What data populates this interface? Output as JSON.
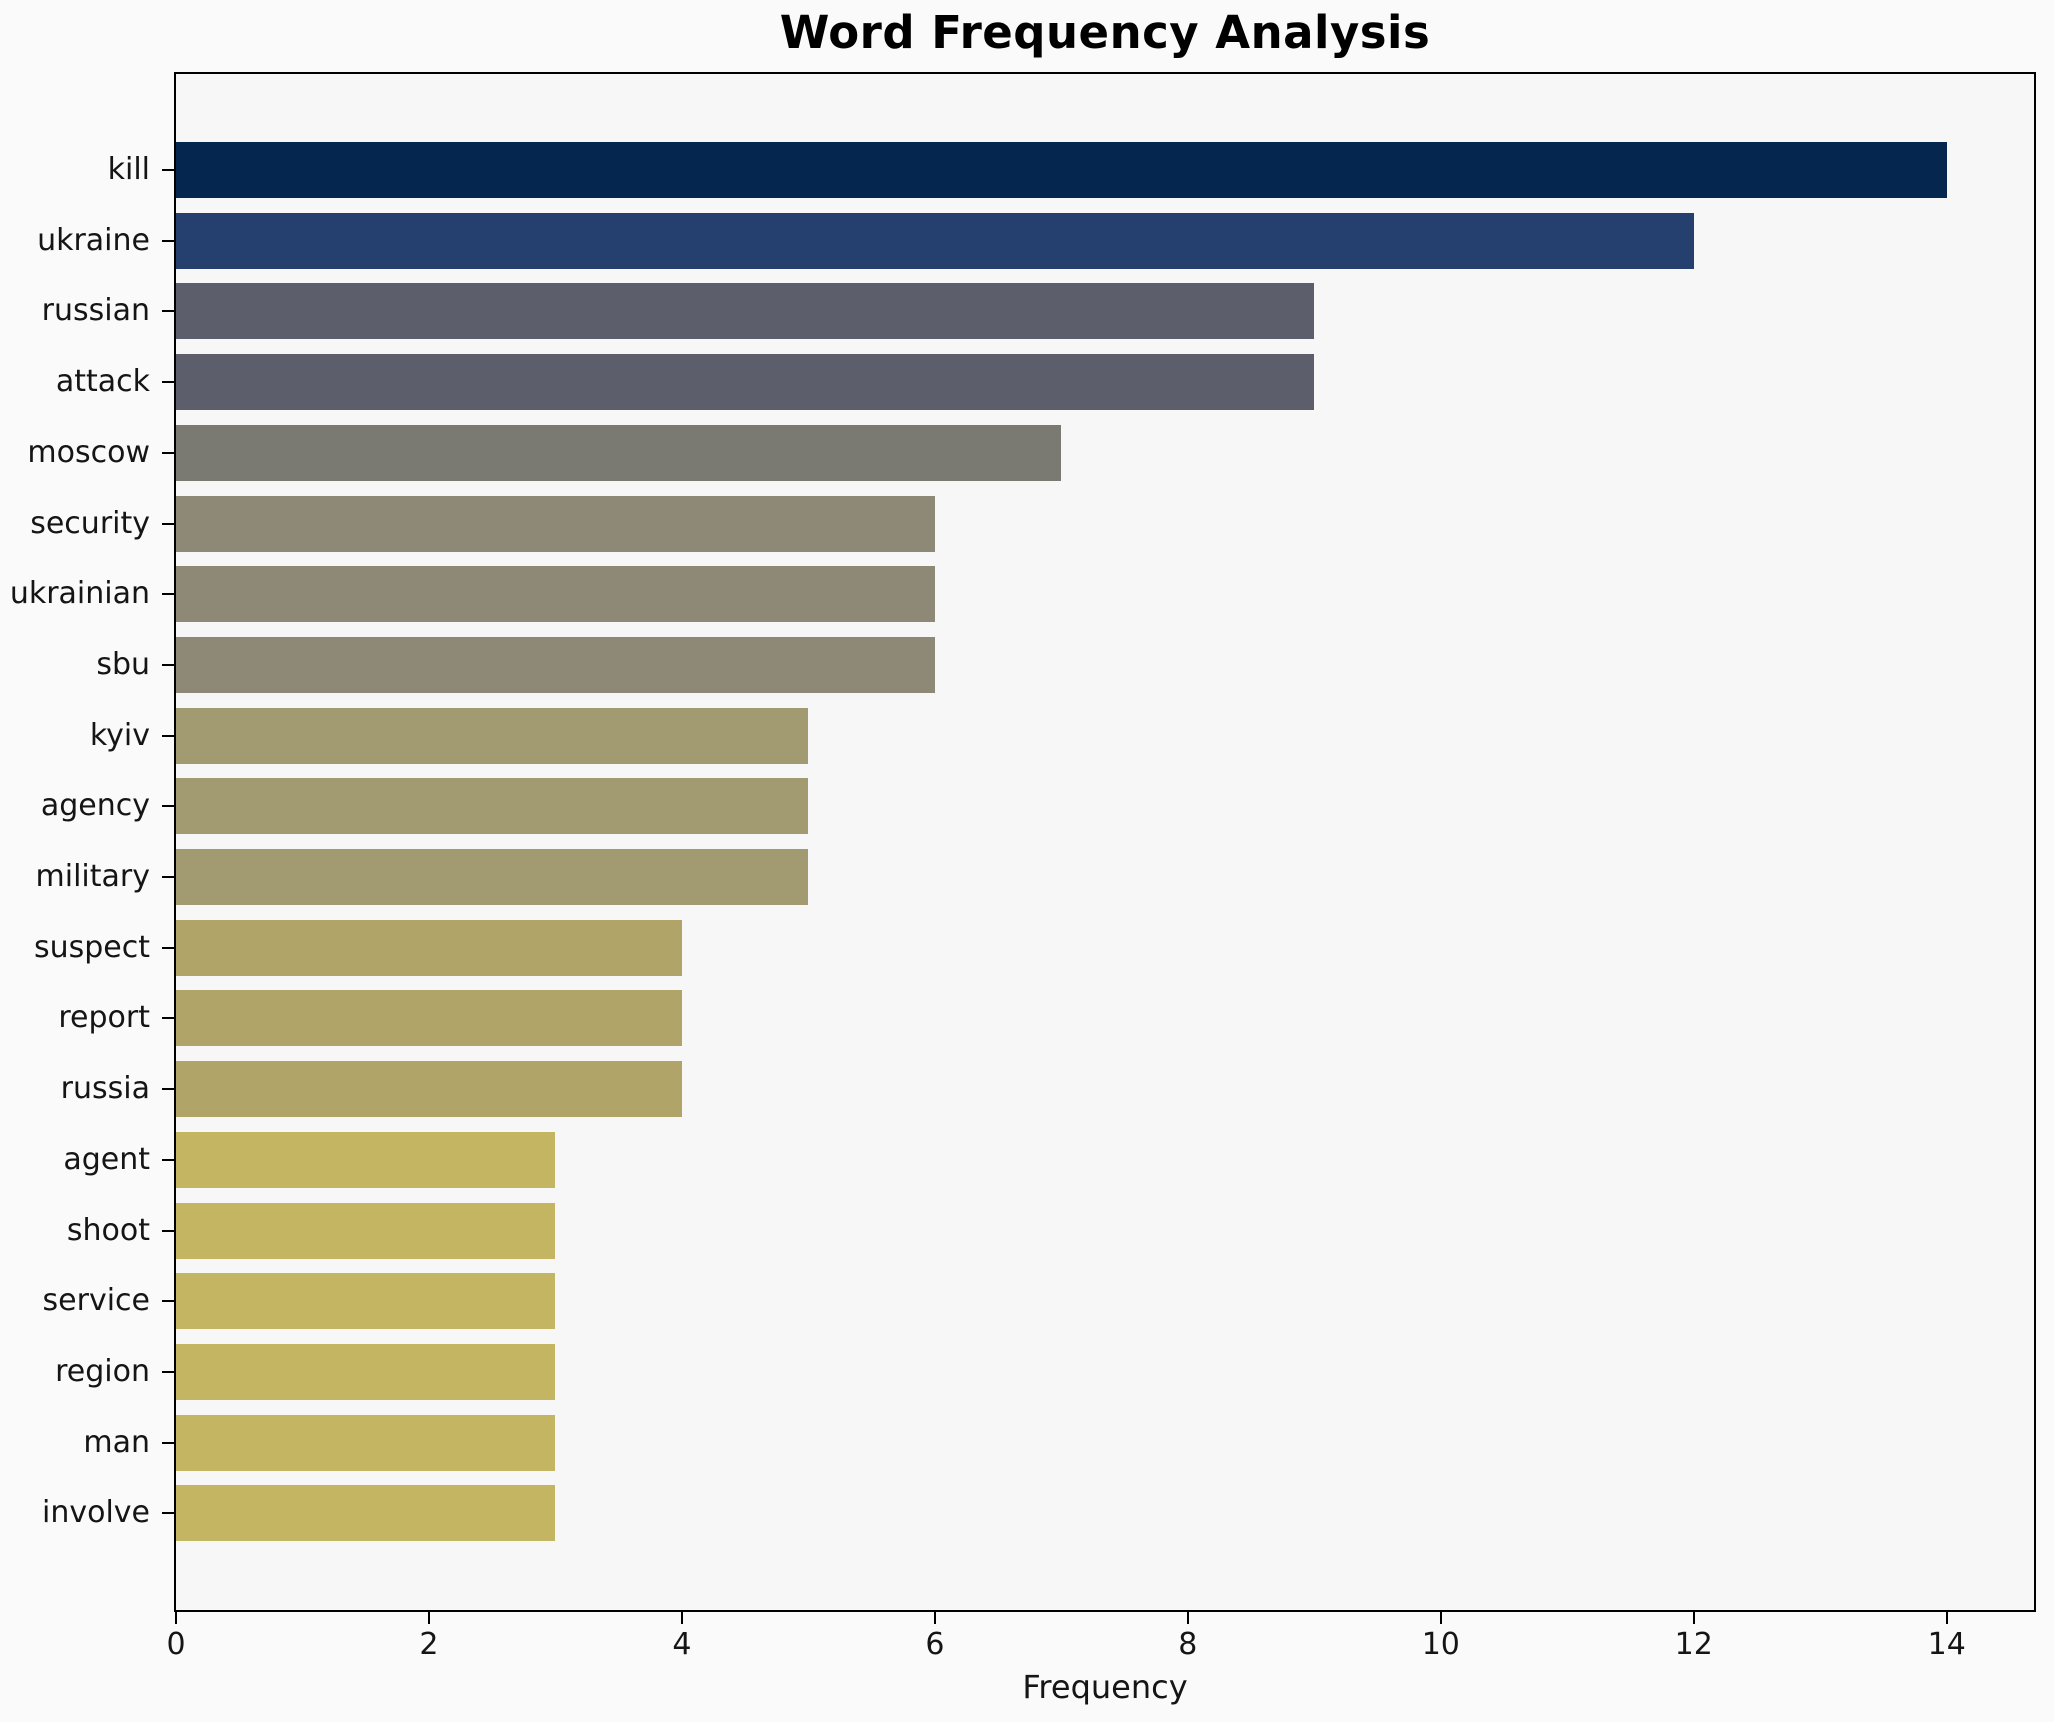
{
  "figure": {
    "background_color": "#fafafa",
    "plot_background_color": "#f7f7f8",
    "spine_color": "#000000"
  },
  "chart_data": {
    "type": "bar",
    "orientation": "horizontal",
    "title": "Word Frequency Analysis",
    "xlabel": "Frequency",
    "ylabel": "",
    "categories": [
      "kill",
      "ukraine",
      "russian",
      "attack",
      "moscow",
      "security",
      "ukrainian",
      "sbu",
      "kyiv",
      "agency",
      "military",
      "suspect",
      "report",
      "russia",
      "agent",
      "shoot",
      "service",
      "region",
      "man",
      "involve"
    ],
    "values": [
      14,
      12,
      9,
      9,
      7,
      6,
      6,
      6,
      5,
      5,
      5,
      4,
      4,
      4,
      3,
      3,
      3,
      3,
      3,
      3
    ],
    "bar_colors": [
      "#04264f",
      "#25406e",
      "#5c5f6b",
      "#5c5f6b",
      "#7b7a72",
      "#8e8876",
      "#8e8876",
      "#8e8876",
      "#a29a70",
      "#a29a70",
      "#a29a70",
      "#b0a468",
      "#b0a468",
      "#b0a468",
      "#c3b562",
      "#c3b562",
      "#c3b562",
      "#c3b562",
      "#c3b562",
      "#c3b562"
    ],
    "xlim": [
      0,
      14.69
    ],
    "xticks": [
      0,
      2,
      4,
      6,
      8,
      10,
      12,
      14
    ],
    "grid": false,
    "legend": false
  }
}
